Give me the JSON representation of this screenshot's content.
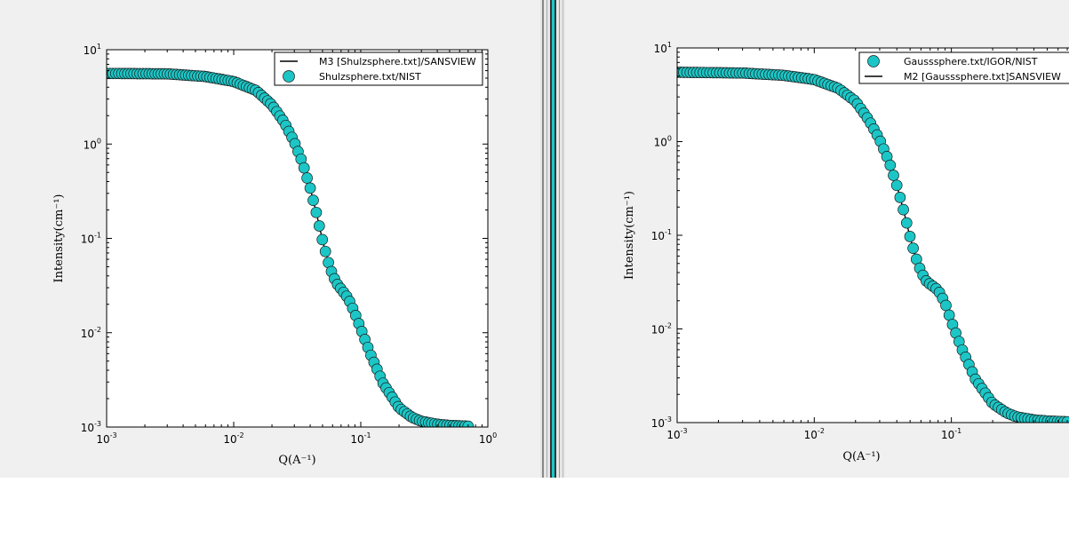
{
  "colors": {
    "marker": "#1cc6c6",
    "line": "#000000",
    "panel_bg": "#f0f0f0",
    "plot_bg": "#ffffff"
  },
  "chart_data": [
    {
      "type": "scatter",
      "xlabel": "Q(A⁻¹)",
      "ylabel": "Intensity(cm⁻¹)",
      "xscale": "log",
      "yscale": "log",
      "xlim": [
        0.001,
        1
      ],
      "ylim": [
        0.001,
        10
      ],
      "xticks": [
        {
          "base": "10",
          "exp": "-3"
        },
        {
          "base": "10",
          "exp": "-2"
        },
        {
          "base": "10",
          "exp": "-1"
        },
        {
          "base": "10",
          "exp": "0"
        }
      ],
      "yticks": [
        {
          "base": "10",
          "exp": "-3"
        },
        {
          "base": "10",
          "exp": "-2"
        },
        {
          "base": "10",
          "exp": "-1"
        },
        {
          "base": "10",
          "exp": "0"
        },
        {
          "base": "10",
          "exp": "1"
        }
      ],
      "legend_position": "top-right",
      "legend": [
        {
          "label": "M3 [Shulzsphere.txt]/SANSVIEW",
          "kind": "line"
        },
        {
          "label": "Shulzsphere.txt/NIST",
          "kind": "marker"
        }
      ],
      "series": [
        {
          "name": "M3 [Shulzsphere.txt]/SANSVIEW",
          "style": "line",
          "x": [
            0.001,
            0.003,
            0.006,
            0.01,
            0.015,
            0.02,
            0.025,
            0.03,
            0.035,
            0.04,
            0.045,
            0.05,
            0.055,
            0.06,
            0.065,
            0.07,
            0.08,
            0.09,
            0.1,
            0.12,
            0.15,
            0.2,
            0.25,
            0.3,
            0.4,
            0.5,
            0.7
          ],
          "y": [
            5.6,
            5.55,
            5.2,
            4.6,
            3.7,
            2.6,
            1.7,
            1.05,
            0.62,
            0.34,
            0.18,
            0.095,
            0.058,
            0.041,
            0.033,
            0.029,
            0.023,
            0.016,
            0.011,
            0.0058,
            0.0029,
            0.0016,
            0.00128,
            0.00115,
            0.00107,
            0.00104,
            0.00102
          ]
        },
        {
          "name": "Shulzsphere.txt/NIST",
          "style": "marker",
          "x": [
            0.001,
            0.003,
            0.006,
            0.01,
            0.015,
            0.02,
            0.025,
            0.03,
            0.035,
            0.04,
            0.045,
            0.05,
            0.055,
            0.06,
            0.065,
            0.07,
            0.08,
            0.09,
            0.1,
            0.12,
            0.15,
            0.2,
            0.25,
            0.3,
            0.4,
            0.5,
            0.7
          ],
          "y": [
            5.6,
            5.55,
            5.2,
            4.6,
            3.7,
            2.6,
            1.7,
            1.05,
            0.62,
            0.34,
            0.18,
            0.095,
            0.058,
            0.041,
            0.033,
            0.029,
            0.023,
            0.016,
            0.011,
            0.0058,
            0.0029,
            0.0016,
            0.00128,
            0.00115,
            0.00107,
            0.00104,
            0.00102
          ]
        }
      ]
    },
    {
      "type": "scatter",
      "xlabel": "Q(A⁻¹)",
      "ylabel": "Intensity(cm⁻¹)",
      "xscale": "log",
      "yscale": "log",
      "xlim": [
        0.001,
        0.8
      ],
      "ylim": [
        0.001,
        10
      ],
      "xticks": [
        {
          "base": "10",
          "exp": "-3"
        },
        {
          "base": "10",
          "exp": "-2"
        },
        {
          "base": "10",
          "exp": "-1"
        }
      ],
      "yticks": [
        {
          "base": "10",
          "exp": "-3"
        },
        {
          "base": "10",
          "exp": "-2"
        },
        {
          "base": "10",
          "exp": "-1"
        },
        {
          "base": "10",
          "exp": "0"
        },
        {
          "base": "10",
          "exp": "1"
        }
      ],
      "legend_position": "top-right",
      "legend": [
        {
          "label": "Gausssphere.txt/IGOR/NIST",
          "kind": "marker"
        },
        {
          "label": "M2 [Gausssphere.txt]SANSVIEW",
          "kind": "line"
        }
      ],
      "series": [
        {
          "name": "Gausssphere.txt/IGOR/NIST",
          "style": "marker",
          "x": [
            0.001,
            0.003,
            0.006,
            0.01,
            0.015,
            0.02,
            0.025,
            0.03,
            0.035,
            0.04,
            0.045,
            0.05,
            0.055,
            0.06,
            0.065,
            0.07,
            0.08,
            0.09,
            0.1,
            0.12,
            0.15,
            0.2,
            0.25,
            0.3,
            0.4,
            0.5,
            0.7
          ],
          "y": [
            5.5,
            5.4,
            5.1,
            4.6,
            3.7,
            2.7,
            1.7,
            1.05,
            0.62,
            0.34,
            0.18,
            0.095,
            0.058,
            0.041,
            0.033,
            0.03,
            0.026,
            0.019,
            0.012,
            0.006,
            0.0029,
            0.0016,
            0.00128,
            0.00115,
            0.00107,
            0.00104,
            0.00102
          ]
        },
        {
          "name": "M2 [Gausssphere.txt]SANSVIEW",
          "style": "line",
          "x": [
            0.001,
            0.003,
            0.006,
            0.01,
            0.015,
            0.02,
            0.025,
            0.03,
            0.035,
            0.04,
            0.045,
            0.05,
            0.055,
            0.06,
            0.065,
            0.07,
            0.08,
            0.09,
            0.1,
            0.12,
            0.15,
            0.2,
            0.25,
            0.3,
            0.4,
            0.5,
            0.7
          ],
          "y": [
            5.5,
            5.4,
            5.1,
            4.6,
            3.7,
            2.7,
            1.7,
            1.05,
            0.62,
            0.34,
            0.18,
            0.095,
            0.058,
            0.041,
            0.033,
            0.03,
            0.026,
            0.019,
            0.012,
            0.006,
            0.0029,
            0.0016,
            0.00128,
            0.00115,
            0.00107,
            0.00104,
            0.00102
          ]
        }
      ]
    }
  ]
}
